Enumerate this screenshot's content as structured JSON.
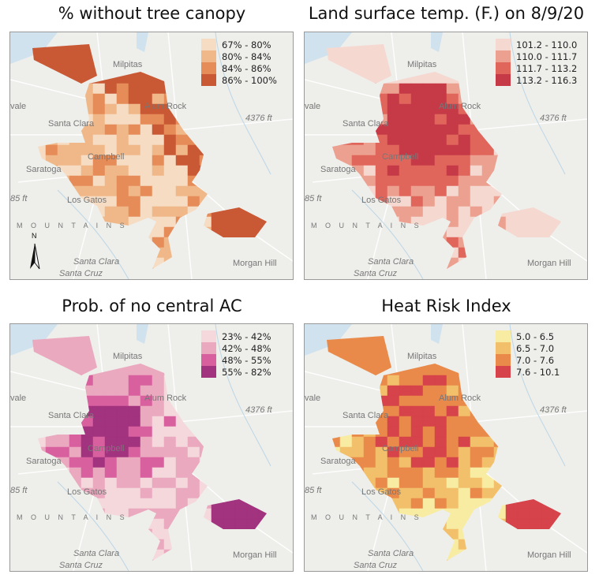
{
  "map_labels": {
    "milpitas": "Milpitas",
    "alum_rock": "Alum Rock",
    "sunnyvale_partial": "vale",
    "santa_clara": "Santa Clara",
    "campbell": "Campbell",
    "saratoga": "Saratoga",
    "los_gatos": "Los Gatos",
    "elev_4376": "4376 ft",
    "elev_85": "85 ft",
    "mountains": "M O U N T A I N S",
    "santa_clara_mtn": "Santa Clara",
    "santa_cruz": "Santa Cruz",
    "morgan_hill": "Morgan Hill",
    "north_arrow": "N"
  },
  "panels": [
    {
      "title": "% without tree canopy",
      "legend": [
        {
          "label": "67% - 80%",
          "color": "#f6dcc3"
        },
        {
          "label": "80% - 84%",
          "color": "#f0b888"
        },
        {
          "label": "84% - 86%",
          "color": "#e58c58"
        },
        {
          "label": "86% - 100%",
          "color": "#c95934"
        }
      ],
      "north_arrow": true
    },
    {
      "title": "Land surface temp. (F.) on 8/9/20",
      "legend": [
        {
          "label": "101.2 - 110.0",
          "color": "#f5d8d0"
        },
        {
          "label": "110.0 - 111.7",
          "color": "#eca08f"
        },
        {
          "label": "111.7 - 113.2",
          "color": "#e0665c"
        },
        {
          "label": "113.2 - 116.3",
          "color": "#c63a48"
        }
      ],
      "north_arrow": false
    },
    {
      "title": "Prob. of no central AC",
      "legend": [
        {
          "label": "23% - 42%",
          "color": "#f4d8dc"
        },
        {
          "label": "42% - 48%",
          "color": "#eaa9be"
        },
        {
          "label": "48% - 55%",
          "color": "#d9609f"
        },
        {
          "label": "55% - 82%",
          "color": "#a2337f"
        }
      ],
      "north_arrow": false
    },
    {
      "title": "Heat Risk Index",
      "legend": [
        {
          "label": "5.0 - 6.5",
          "color": "#f8eca2"
        },
        {
          "label": "6.5 - 7.0",
          "color": "#f2c06a"
        },
        {
          "label": "7.0 - 7.6",
          "color": "#e98a4a"
        },
        {
          "label": "7.6 - 10.1",
          "color": "#d6434a"
        }
      ],
      "north_arrow": false
    }
  ]
}
